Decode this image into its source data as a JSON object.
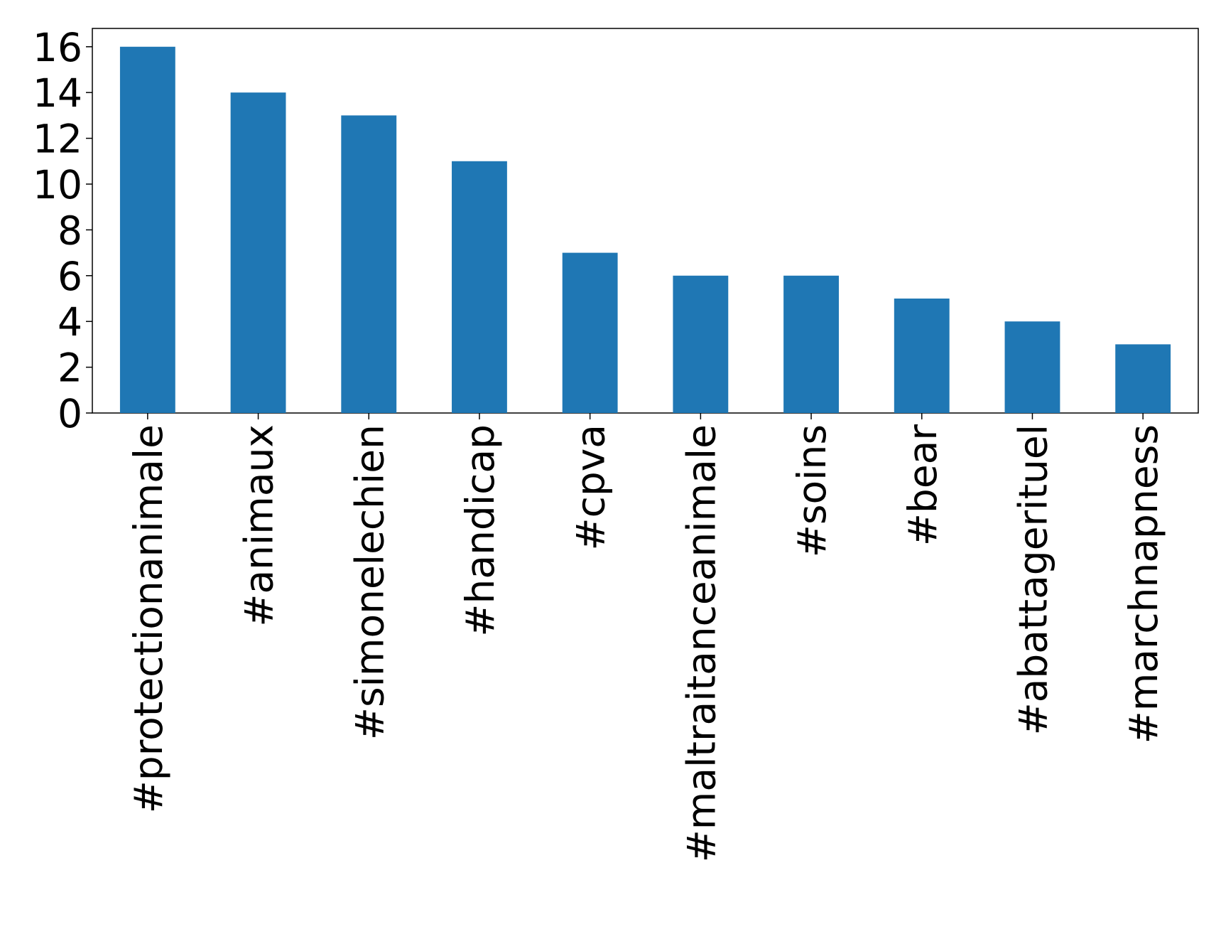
{
  "chart_data": {
    "type": "bar",
    "categories": [
      "#protectionanimale",
      "#animaux",
      "#simonelechien",
      "#handicap",
      "#cpva",
      "#maltraitanceanimale",
      "#soins",
      "#bear",
      "#abattagerituel",
      "#marchnapness"
    ],
    "values": [
      16,
      14,
      13,
      11,
      7,
      6,
      6,
      5,
      4,
      3
    ],
    "color": "#1f77b4",
    "ylim": [
      0,
      16.8
    ],
    "yticks": [
      0,
      2,
      4,
      6,
      8,
      10,
      12,
      14,
      16
    ],
    "grid": false
  }
}
